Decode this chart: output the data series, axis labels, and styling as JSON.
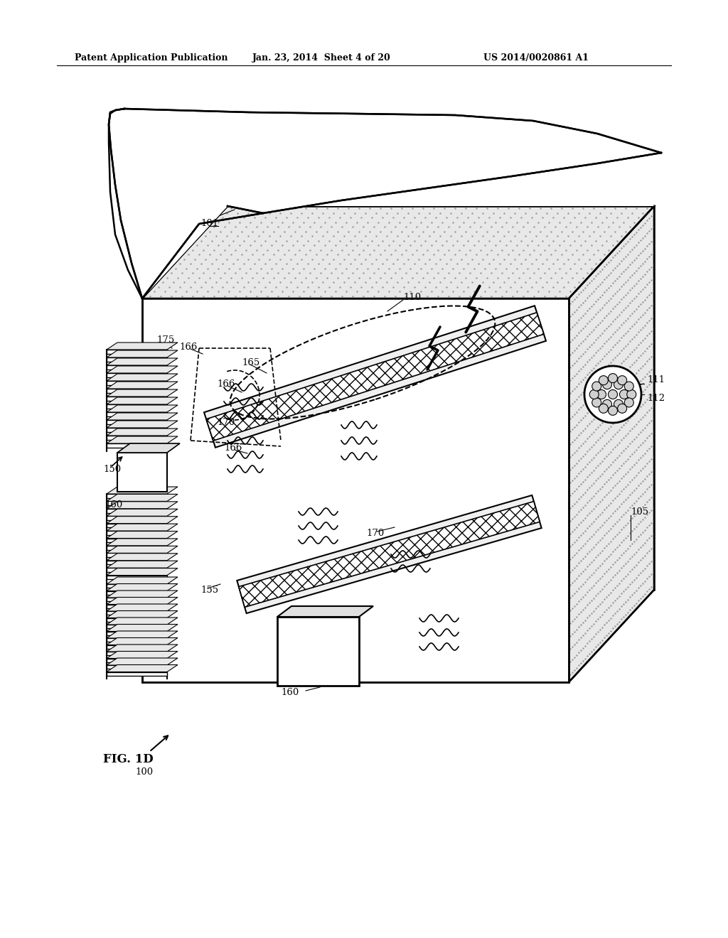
{
  "header_left": "Patent Application Publication",
  "header_mid": "Jan. 23, 2014  Sheet 4 of 20",
  "header_right": "US 2014/0020861 A1",
  "fig_label": "FIG. 1D",
  "ref_100": "100",
  "ref_101": "101",
  "ref_105": "105",
  "ref_110": "110",
  "ref_111": "111",
  "ref_112": "112",
  "ref_150": "150",
  "ref_155": "155",
  "ref_160": "160",
  "ref_165": "165",
  "ref_166": "166",
  "ref_170": "170",
  "ref_175": "175",
  "bg_color": "#ffffff",
  "line_color": "#000000"
}
